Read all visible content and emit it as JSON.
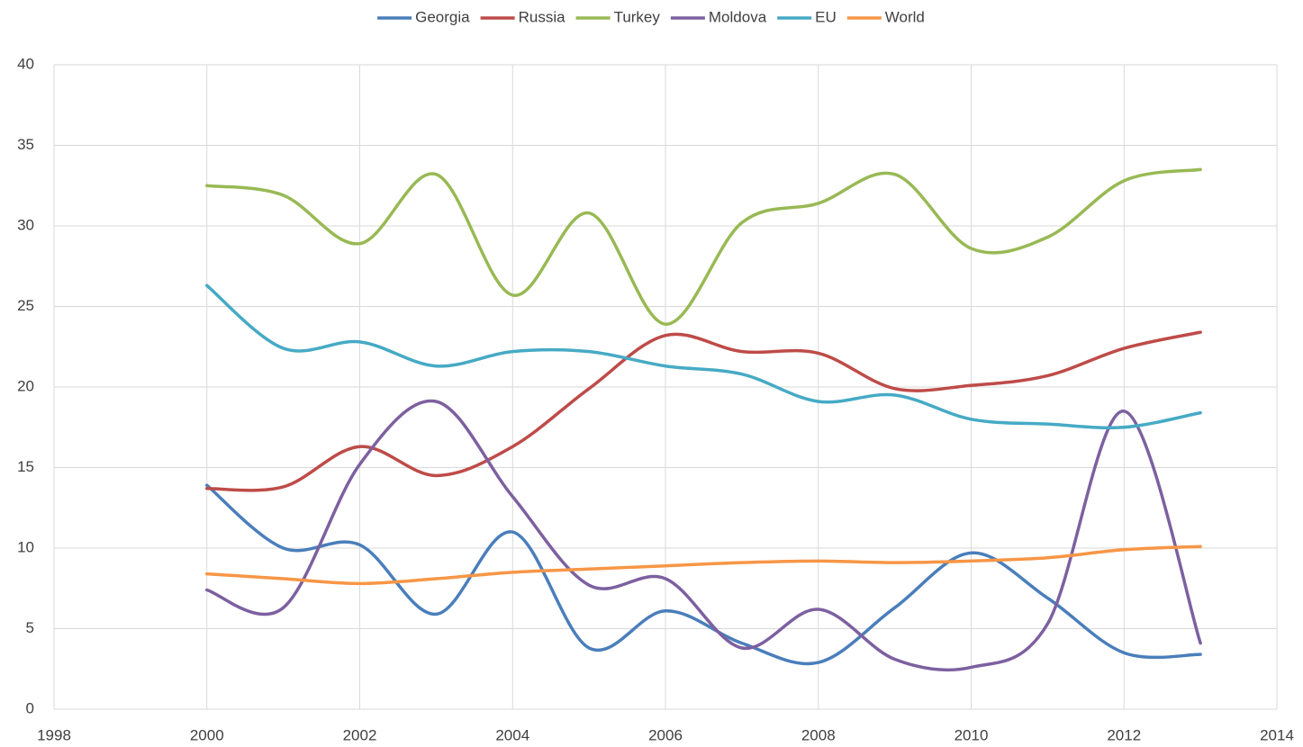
{
  "chart_data": {
    "type": "line",
    "x": [
      2000,
      2001,
      2002,
      2003,
      2004,
      2005,
      2006,
      2007,
      2008,
      2009,
      2010,
      2011,
      2012,
      2013
    ],
    "series": [
      {
        "name": "Georgia",
        "color": "#4a7ebb",
        "values": [
          13.9,
          10.0,
          10.2,
          5.9,
          11.0,
          3.8,
          6.1,
          4.1,
          2.9,
          6.3,
          9.7,
          6.9,
          3.5,
          3.4
        ]
      },
      {
        "name": "Russia",
        "color": "#be4b48",
        "values": [
          13.7,
          13.8,
          16.3,
          14.5,
          16.3,
          19.9,
          23.2,
          22.2,
          22.1,
          19.9,
          20.1,
          20.7,
          22.4,
          23.4
        ]
      },
      {
        "name": "Turkey",
        "color": "#98b954",
        "values": [
          32.5,
          31.9,
          28.9,
          33.2,
          25.7,
          30.8,
          23.9,
          30.2,
          31.4,
          33.2,
          28.6,
          29.3,
          32.8,
          33.5
        ]
      },
      {
        "name": "Moldova",
        "color": "#7d60a0",
        "values": [
          7.4,
          6.3,
          15.2,
          19.1,
          13.2,
          7.7,
          8.1,
          3.8,
          6.2,
          3.1,
          2.6,
          5.3,
          18.5,
          4.1
        ]
      },
      {
        "name": "EU",
        "color": "#46aac5",
        "values": [
          26.3,
          22.4,
          22.8,
          21.3,
          22.2,
          22.2,
          21.3,
          20.8,
          19.1,
          19.5,
          18.0,
          17.7,
          17.5,
          18.4
        ]
      },
      {
        "name": "World",
        "color": "#f79646",
        "values": [
          8.4,
          8.1,
          7.8,
          8.1,
          8.5,
          8.7,
          8.9,
          9.1,
          9.2,
          9.1,
          9.2,
          9.4,
          9.9,
          10.1
        ]
      }
    ],
    "xlim": [
      1998,
      2014
    ],
    "xticks": [
      1998,
      2000,
      2002,
      2004,
      2006,
      2008,
      2010,
      2012,
      2014
    ],
    "ylim": [
      0,
      40
    ],
    "yticks": [
      0,
      5,
      10,
      15,
      20,
      25,
      30,
      35,
      40
    ],
    "grid": true,
    "smooth": true,
    "legend": "top"
  }
}
